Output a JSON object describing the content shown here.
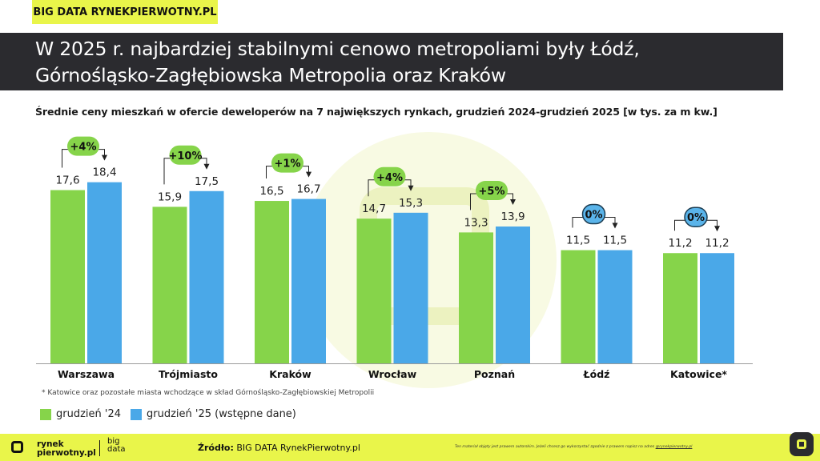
{
  "header_tag": "BIG DATA RYNEKPIERWOTNY.PL",
  "title_line1": "W 2025 r. najbardziej stabilnymi cenowo metropoliami były Łódź,",
  "title_line2": "Górnośląsko-Zagłębiowska Metropolia oraz Kraków",
  "footnote": "* Katowice oraz pozostałe miasta wchodzące w skład Górnośląsko-Zagłębiowskiej Metropolii",
  "footer": {
    "brand_line1": "rynek",
    "brand_line2": "pierwotny.pl",
    "brand2_line1": "big",
    "brand2_line2": "data",
    "source_label": "Źródło:",
    "source_text": "BIG DATA RynekPierwotny.pl",
    "legal_text": "Ten materiał objęty jest prawem autorskim. Jeżeli chcesz go wykorzystać zgodnie z prawem napisz na adres ",
    "legal_email": "@rynekpierwotny.pl"
  },
  "colors": {
    "green": "#86d44a",
    "blue": "#4aa8e8",
    "accent": "#e9f54a",
    "dark": "#2b2b2f",
    "badge_blue": "#5ab4ea"
  },
  "chart_data": {
    "type": "bar",
    "title": "Średnie ceny mieszkań w ofercie deweloperów na 7 największych rynkach, grudzień 2024-grudzień 2025 [w tys. za m kw.]",
    "categories": [
      "Warszawa",
      "Trójmiasto",
      "Kraków",
      "Wrocław",
      "Poznań",
      "Łódź",
      "Katowice*"
    ],
    "series": [
      {
        "name": "grudzień '24",
        "values": [
          17.6,
          15.9,
          16.5,
          14.7,
          13.3,
          11.5,
          11.2
        ],
        "labels": [
          "17,6",
          "15,9",
          "16,5",
          "14,7",
          "13,3",
          "11,5",
          "11,2"
        ]
      },
      {
        "name": "grudzień '25 (wstępne dane)",
        "values": [
          18.4,
          17.5,
          16.7,
          15.3,
          13.9,
          11.5,
          11.2
        ],
        "labels": [
          "18,4",
          "17,5",
          "16,7",
          "15,3",
          "13,9",
          "11,5",
          "11,2"
        ]
      }
    ],
    "changes": [
      "+4%",
      "+10%",
      "+1%",
      "+4%",
      "+5%",
      "0%",
      "0%"
    ],
    "change_style": [
      "green",
      "green",
      "green",
      "green",
      "green",
      "blue",
      "blue"
    ],
    "ylim": [
      0,
      20
    ],
    "grid": false,
    "legend": "bottom-left"
  }
}
